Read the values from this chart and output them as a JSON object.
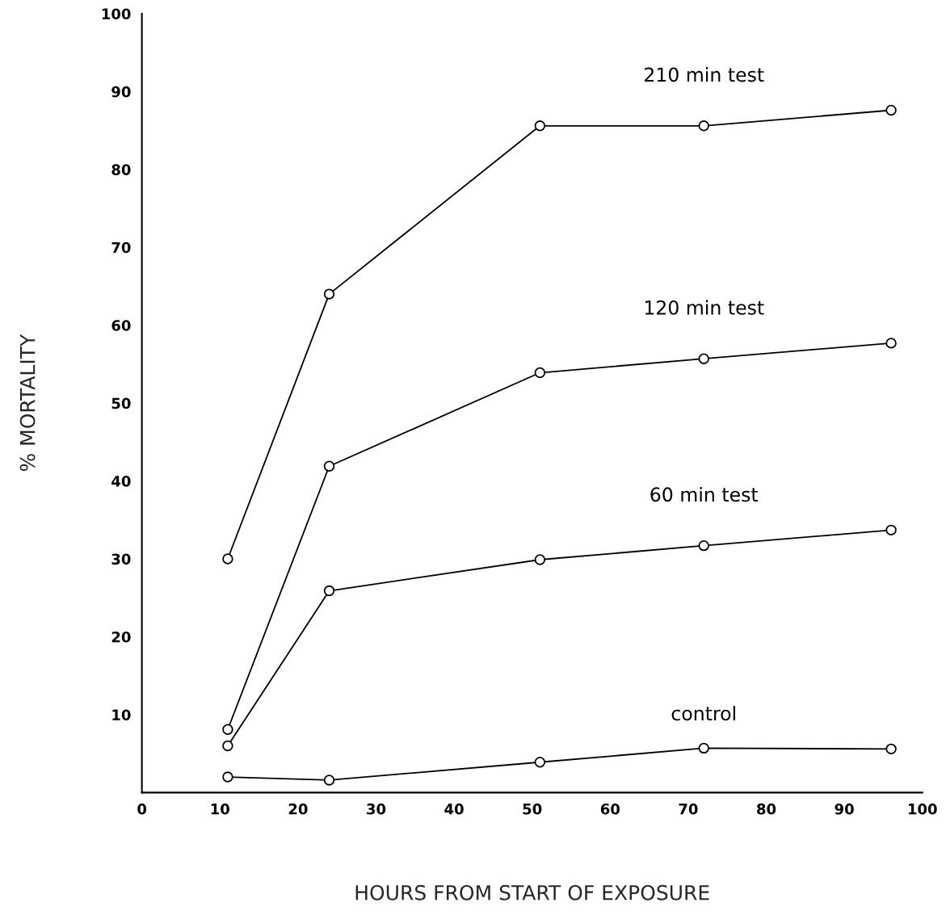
{
  "chart_data": {
    "type": "line",
    "xlabel": "HOURS FROM START OF EXPOSURE",
    "ylabel": "% MORTALITY",
    "xlim": [
      0,
      100
    ],
    "xticks": [
      0,
      10,
      20,
      30,
      40,
      50,
      60,
      70,
      80,
      90,
      100
    ],
    "ylim": [
      0,
      100
    ],
    "yticks": [
      10,
      20,
      30,
      40,
      50,
      60,
      70,
      80,
      90,
      100
    ],
    "marker": "circle",
    "line_style": "solid",
    "grid": false,
    "legend": false,
    "series": [
      {
        "name": "210 min test",
        "color": "#000000",
        "x": [
          11,
          24,
          51,
          72,
          96
        ],
        "values": [
          30,
          64,
          85.6,
          85.6,
          87.6
        ]
      },
      {
        "name": "120 min test",
        "color": "#000000",
        "x": [
          11,
          24,
          51,
          72,
          96
        ],
        "values": [
          8.1,
          41.9,
          53.9,
          55.7,
          57.7
        ]
      },
      {
        "name": "60 min test",
        "color": "#000000",
        "x": [
          11,
          24,
          51,
          72,
          96
        ],
        "values": [
          6,
          25.9,
          29.9,
          31.7,
          33.7
        ]
      },
      {
        "name": "control",
        "color": "#000000",
        "x": [
          11,
          24,
          51,
          72,
          96
        ],
        "values": [
          2,
          1.6,
          3.9,
          5.7,
          5.6
        ]
      }
    ]
  }
}
